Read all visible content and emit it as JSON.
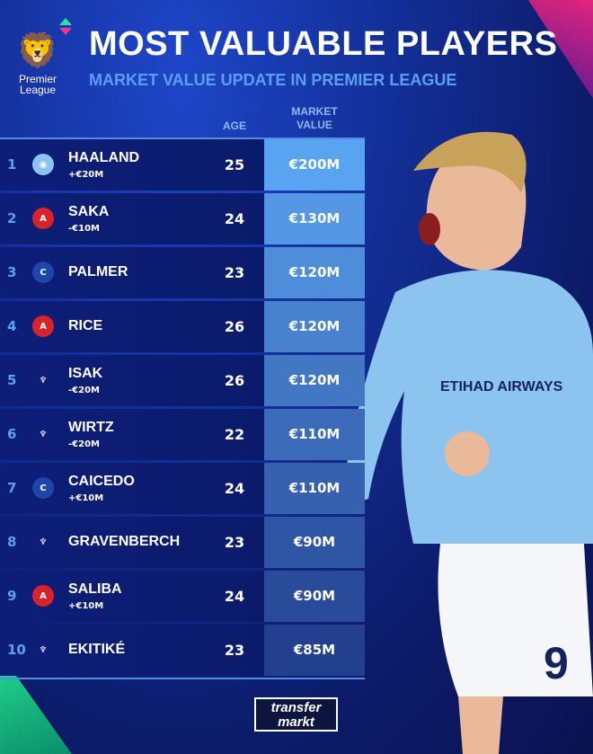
{
  "header": {
    "title": "MOST VALUABLE PLAYERS",
    "subtitle": "MARKET VALUE UPDATE IN PREMIER LEAGUE",
    "league_logo_text": "Premier League"
  },
  "columns": {
    "age": "AGE",
    "market_value_line1": "MARKET",
    "market_value_line2": "VALUE"
  },
  "rows": [
    {
      "rank": "1",
      "club": "Manchester City",
      "name": "HAALAND",
      "change": "+€20M",
      "age": "25",
      "value": "€200M"
    },
    {
      "rank": "2",
      "club": "Arsenal",
      "name": "SAKA",
      "change": "-€10M",
      "age": "24",
      "value": "€130M"
    },
    {
      "rank": "3",
      "club": "Chelsea",
      "name": "PALMER",
      "change": "",
      "age": "23",
      "value": "€120M"
    },
    {
      "rank": "4",
      "club": "Arsenal",
      "name": "RICE",
      "change": "",
      "age": "26",
      "value": "€120M"
    },
    {
      "rank": "5",
      "club": "Liverpool",
      "name": "ISAK",
      "change": "-€20M",
      "age": "26",
      "value": "€120M"
    },
    {
      "rank": "6",
      "club": "Liverpool",
      "name": "WIRTZ",
      "change": "-€20M",
      "age": "22",
      "value": "€110M"
    },
    {
      "rank": "7",
      "club": "Chelsea",
      "name": "CAICEDO",
      "change": "+€10M",
      "age": "24",
      "value": "€110M"
    },
    {
      "rank": "8",
      "club": "Liverpool",
      "name": "GRAVENBERCH",
      "change": "",
      "age": "23",
      "value": "€90M"
    },
    {
      "rank": "9",
      "club": "Arsenal",
      "name": "SALIBA",
      "change": "+€10M",
      "age": "24",
      "value": "€90M"
    },
    {
      "rank": "10",
      "club": "Liverpool",
      "name": "EKITIKÉ",
      "change": "",
      "age": "23",
      "value": "€85M"
    }
  ],
  "footer": {
    "brand_line1": "transfer",
    "brand_line2": "markt"
  },
  "player_shirt": {
    "sponsor": "ETIHAD AIRWAYS",
    "number": "9"
  },
  "colors": {
    "accent": "#5aa0f0",
    "title": "#ffffff",
    "value_top": "#5aa3f0",
    "value_bottom": "#23408e"
  }
}
